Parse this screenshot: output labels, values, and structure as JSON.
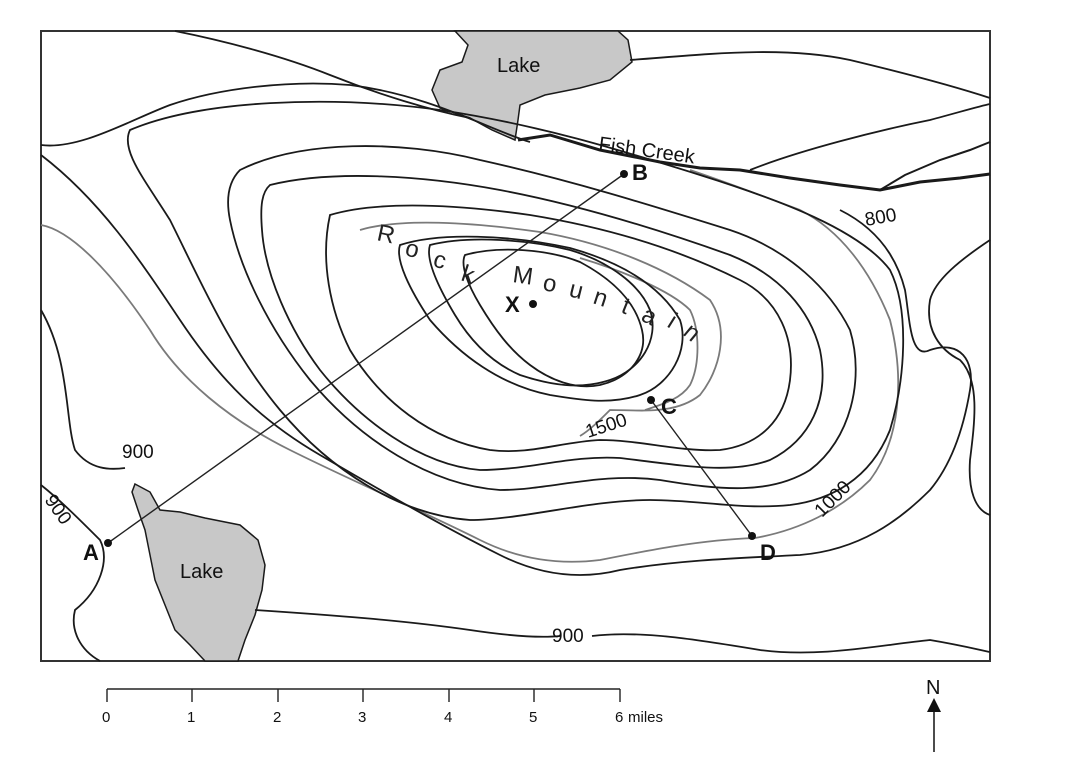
{
  "map": {
    "lake_north_label": "Lake",
    "lake_south_label": "Lake",
    "creek_label": "Fish Creek",
    "mountain_label": "Rock Mountain",
    "mountain_letters": [
      "R",
      "o",
      "c",
      "k",
      "M",
      "o",
      "u",
      "n",
      "t",
      "a",
      "i",
      "n"
    ],
    "points": {
      "A": "A",
      "B": "B",
      "C": "C",
      "D": "D",
      "X": "X"
    },
    "contour_labels": {
      "c800": "800",
      "c900_west": "900",
      "c900_sw": "900",
      "c900_south": "900",
      "c1000": "1000",
      "c1500": "1500"
    }
  },
  "scale_bar": {
    "ticks": [
      "0",
      "1",
      "2",
      "3",
      "4",
      "5",
      "6"
    ],
    "unit": "miles"
  },
  "north_arrow": {
    "label": "N"
  }
}
